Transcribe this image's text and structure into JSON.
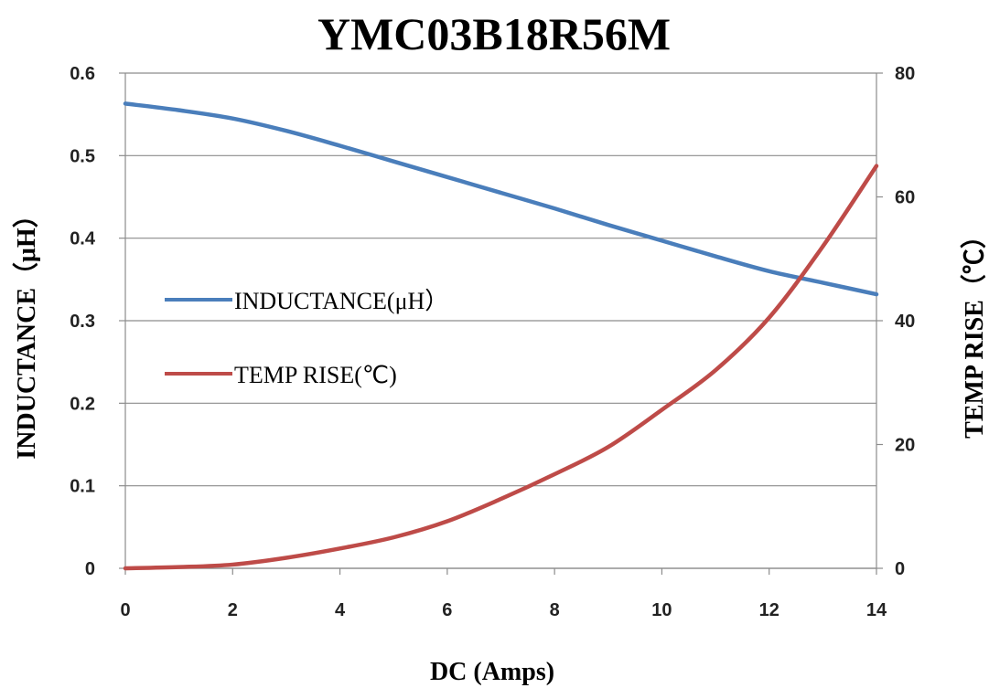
{
  "chart_data": {
    "type": "line",
    "title": "YMC03B18R56M",
    "xlabel": "DC (Amps)",
    "ylabel": "INDUCTANCE（μH）",
    "y2label": "TEMP RISE（℃）",
    "xlim": [
      0,
      14
    ],
    "ylim": [
      0,
      0.6
    ],
    "y2lim": [
      0,
      80
    ],
    "x_ticks": [
      "0",
      "2",
      "4",
      "6",
      "8",
      "10",
      "12",
      "14"
    ],
    "y_ticks": [
      "0",
      "0.1",
      "0.2",
      "0.3",
      "0.4",
      "0.5",
      "0.6"
    ],
    "y2_ticks": [
      "0",
      "20",
      "40",
      "60",
      "80"
    ],
    "grid": true,
    "legend_position": "center-left",
    "series": [
      {
        "name": "INDUCTANCE(μH）",
        "axis": "left",
        "color": "#4a7ebb",
        "x": [
          0,
          1,
          2,
          3,
          4,
          5,
          6,
          7,
          8,
          9,
          10,
          11,
          12,
          13,
          14
        ],
        "y": [
          0.563,
          0.555,
          0.545,
          0.53,
          0.512,
          0.493,
          0.474,
          0.455,
          0.436,
          0.416,
          0.397,
          0.378,
          0.36,
          0.346,
          0.332
        ]
      },
      {
        "name": "TEMP RISE(℃)",
        "axis": "right",
        "color": "#be4b48",
        "x": [
          0,
          1,
          2,
          3,
          4,
          5,
          6,
          7,
          8,
          9,
          10,
          11,
          12,
          13,
          14
        ],
        "y": [
          0,
          0.2,
          0.6,
          1.7,
          3.2,
          5.0,
          7.6,
          11.2,
          15.2,
          19.6,
          25.6,
          32.0,
          40.5,
          52.0,
          65.0
        ]
      }
    ]
  }
}
